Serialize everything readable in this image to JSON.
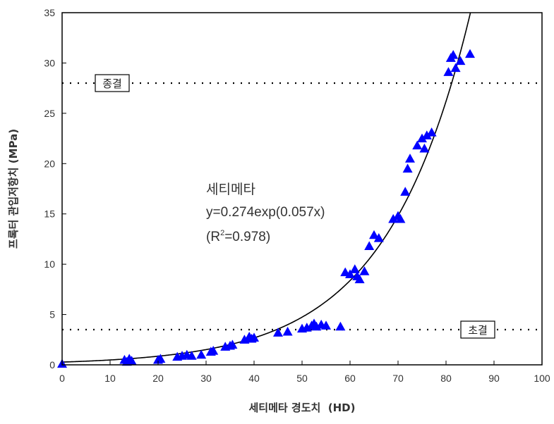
{
  "chart_data": {
    "type": "scatter",
    "xlabel": "세티메타 경도치  (HD)",
    "ylabel": "프록터 관입저항치 (MPa)",
    "xlim": [
      0,
      100
    ],
    "ylim": [
      0,
      35
    ],
    "xticks": [
      "0",
      "10",
      "20",
      "30",
      "40",
      "50",
      "60",
      "70",
      "80",
      "90",
      "100"
    ],
    "yticks": [
      "0",
      "5",
      "10",
      "15",
      "20",
      "25",
      "30",
      "35"
    ],
    "grid": false,
    "annotation": {
      "name": "세티메타",
      "equation": "y=0.274exp(0.057x)",
      "r2_prefix": "(R",
      "r2_sup": "2",
      "r2_suffix": "=0.978)"
    },
    "fit": {
      "type": "exponential",
      "a": 0.274,
      "b": 0.057
    },
    "reference_lines": [
      {
        "label": "종결",
        "y": 28
      },
      {
        "label": "초결",
        "y": 3.5
      }
    ],
    "series": [
      {
        "marker": "triangle",
        "color": "#0000ff",
        "points": [
          [
            0,
            0.1
          ],
          [
            13,
            0.5
          ],
          [
            13.5,
            0.3
          ],
          [
            14,
            0.6
          ],
          [
            14.5,
            0.4
          ],
          [
            20,
            0.5
          ],
          [
            20.5,
            0.6
          ],
          [
            24,
            0.8
          ],
          [
            25,
            0.9
          ],
          [
            26,
            1.0
          ],
          [
            27,
            0.9
          ],
          [
            29,
            1.0
          ],
          [
            31,
            1.3
          ],
          [
            31.5,
            1.4
          ],
          [
            34,
            1.8
          ],
          [
            35,
            1.9
          ],
          [
            35.5,
            2.0
          ],
          [
            38,
            2.5
          ],
          [
            39,
            2.8
          ],
          [
            39.5,
            2.6
          ],
          [
            40,
            2.7
          ],
          [
            45,
            3.2
          ],
          [
            47,
            3.3
          ],
          [
            50,
            3.6
          ],
          [
            51,
            3.7
          ],
          [
            52,
            3.9
          ],
          [
            52.5,
            4.1
          ],
          [
            53,
            3.8
          ],
          [
            54,
            4.0
          ],
          [
            55,
            3.9
          ],
          [
            58,
            3.8
          ],
          [
            59,
            9.2
          ],
          [
            60,
            9.0
          ],
          [
            61,
            9.5
          ],
          [
            61.5,
            8.8
          ],
          [
            62,
            8.5
          ],
          [
            63,
            9.3
          ],
          [
            64,
            11.8
          ],
          [
            65,
            12.9
          ],
          [
            66,
            12.6
          ],
          [
            69,
            14.5
          ],
          [
            70,
            14.8
          ],
          [
            70.5,
            14.5
          ],
          [
            71.5,
            17.2
          ],
          [
            72,
            19.5
          ],
          [
            72.5,
            20.5
          ],
          [
            74,
            21.8
          ],
          [
            75,
            22.5
          ],
          [
            75.5,
            21.5
          ],
          [
            76,
            22.8
          ],
          [
            77,
            23.1
          ],
          [
            80.5,
            29.1
          ],
          [
            81,
            30.5
          ],
          [
            81.5,
            30.8
          ],
          [
            82,
            29.5
          ],
          [
            83,
            30.2
          ],
          [
            85,
            30.9
          ]
        ]
      }
    ]
  }
}
